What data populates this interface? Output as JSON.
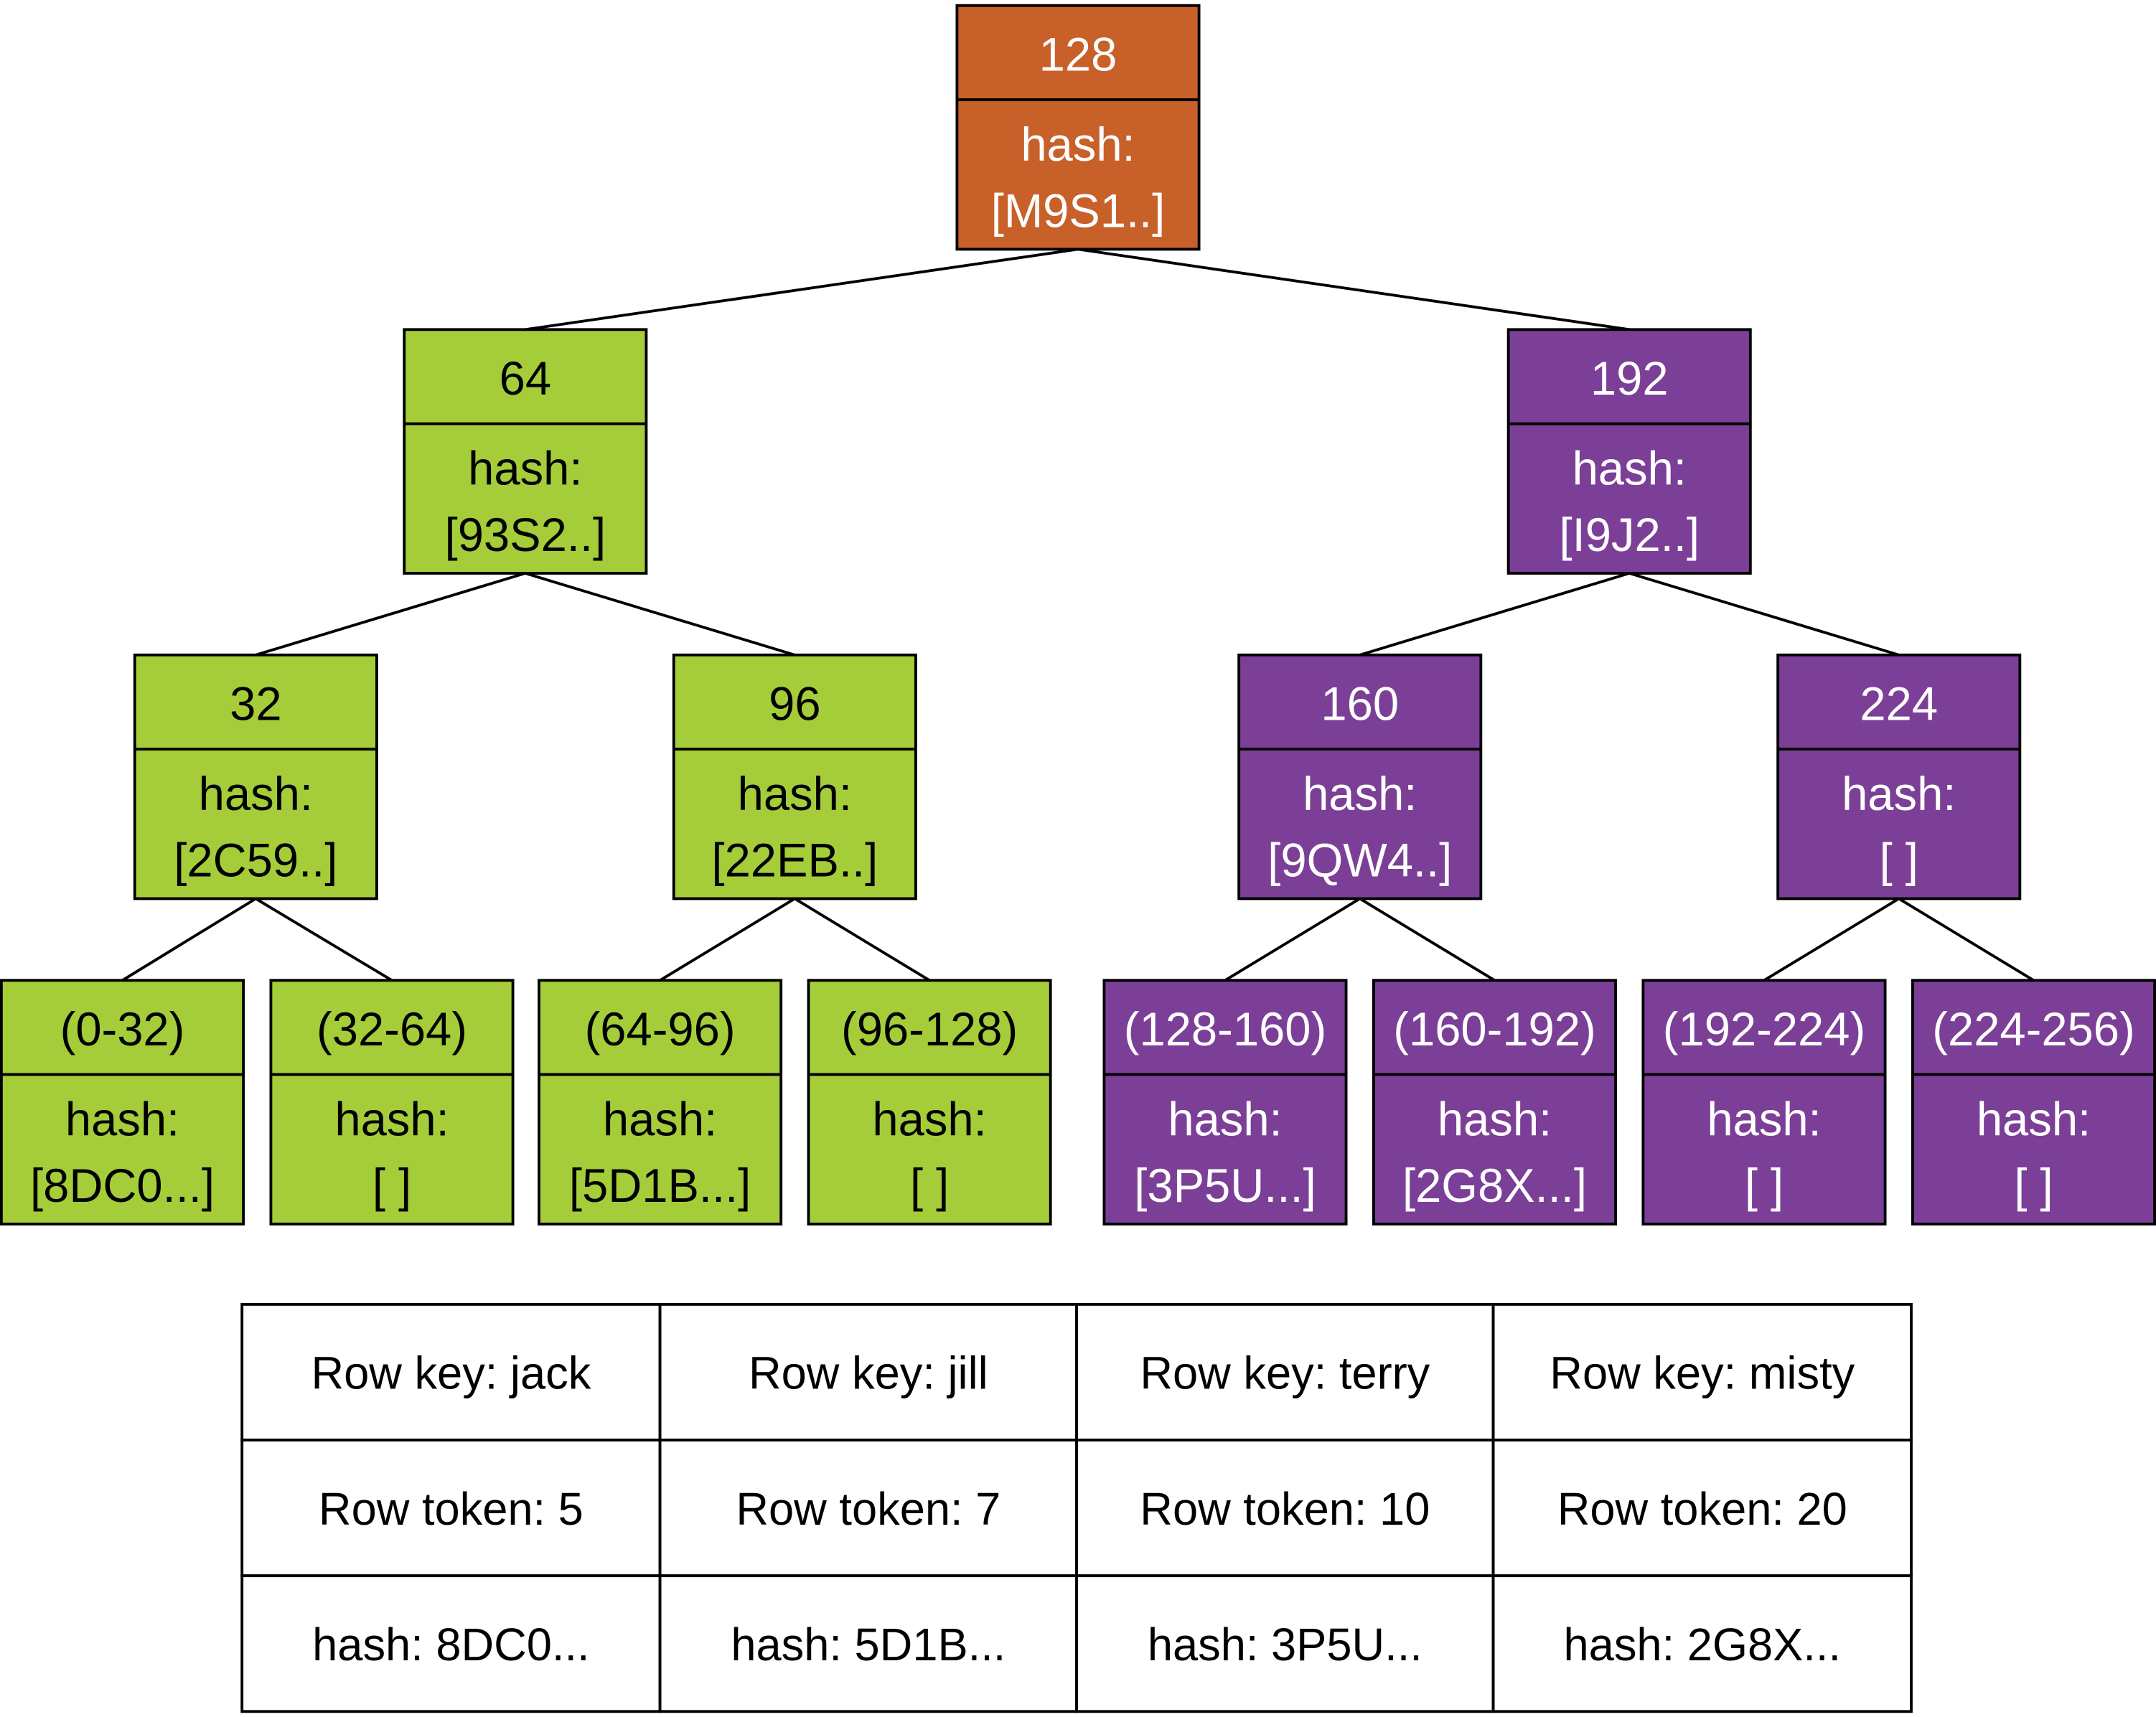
{
  "colors": {
    "root": "#C8602A",
    "left": "#A5CD39",
    "right": "#7B3F98",
    "text_dark": "#000000",
    "text_light": "#FFFFFF",
    "border": "#000000"
  },
  "tree": {
    "hash_label": "hash:",
    "nodes": [
      {
        "id": "n128",
        "token": "128",
        "hash": "[M9S1..]",
        "group": "root",
        "parent": null
      },
      {
        "id": "n64",
        "token": "64",
        "hash": "[93S2..]",
        "group": "left",
        "parent": "n128"
      },
      {
        "id": "n192",
        "token": "192",
        "hash": "[I9J2..]",
        "group": "right",
        "parent": "n128"
      },
      {
        "id": "n32",
        "token": "32",
        "hash": "[2C59..]",
        "group": "left",
        "parent": "n64"
      },
      {
        "id": "n96",
        "token": "96",
        "hash": "[22EB..]",
        "group": "left",
        "parent": "n64"
      },
      {
        "id": "n160",
        "token": "160",
        "hash": "[9QW4..]",
        "group": "right",
        "parent": "n192"
      },
      {
        "id": "n224",
        "token": "224",
        "hash": "[ ]",
        "group": "right",
        "parent": "n192"
      },
      {
        "id": "r0",
        "token": "(0-32)",
        "hash": "[8DC0...]",
        "group": "left",
        "parent": "n32"
      },
      {
        "id": "r1",
        "token": "(32-64)",
        "hash": "[ ]",
        "group": "left",
        "parent": "n32"
      },
      {
        "id": "r2",
        "token": "(64-96)",
        "hash": "[5D1B...]",
        "group": "left",
        "parent": "n96"
      },
      {
        "id": "r3",
        "token": "(96-128)",
        "hash": "[ ]",
        "group": "left",
        "parent": "n96"
      },
      {
        "id": "r4",
        "token": "(128-160)",
        "hash": "[3P5U...]",
        "group": "right",
        "parent": "n160"
      },
      {
        "id": "r5",
        "token": "(160-192)",
        "hash": "[2G8X...]",
        "group": "right",
        "parent": "n160"
      },
      {
        "id": "r6",
        "token": "(192-224)",
        "hash": "[ ]",
        "group": "right",
        "parent": "n224"
      },
      {
        "id": "r7",
        "token": "(224-256)",
        "hash": "[ ]",
        "group": "right",
        "parent": "n224"
      }
    ]
  },
  "table": {
    "rows": [
      [
        "Row key: jack",
        "Row key: jill",
        "Row key: terry",
        "Row key: misty"
      ],
      [
        "Row token: 5",
        "Row token: 7",
        "Row token: 10",
        "Row token: 20"
      ],
      [
        "hash: 8DC0...",
        "hash: 5D1B...",
        "hash: 3P5U...",
        "hash: 2G8X..."
      ]
    ]
  }
}
